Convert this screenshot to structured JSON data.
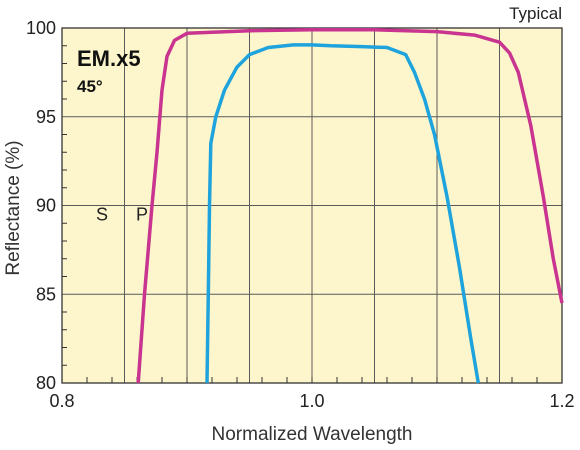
{
  "chart_data": {
    "type": "line",
    "title": "EM.x5",
    "subtitle": "45°",
    "note": "Typical",
    "xlabel": "Normalized Wavelength",
    "ylabel": "Reflectance (%)",
    "xlim": [
      0.8,
      1.2
    ],
    "ylim": [
      80,
      100
    ],
    "x_ticks": [
      "0.8",
      "1.0",
      "1.2"
    ],
    "y_ticks": [
      "80",
      "85",
      "90",
      "95",
      "100"
    ],
    "grid": true,
    "series": [
      {
        "name": "S",
        "color": "#c8348f",
        "points": [
          [
            0.861,
            80.0
          ],
          [
            0.866,
            85.0
          ],
          [
            0.872,
            90.0
          ],
          [
            0.876,
            93.0
          ],
          [
            0.88,
            96.5
          ],
          [
            0.884,
            98.4
          ],
          [
            0.89,
            99.3
          ],
          [
            0.9,
            99.7
          ],
          [
            0.95,
            99.85
          ],
          [
            1.0,
            99.9
          ],
          [
            1.05,
            99.9
          ],
          [
            1.1,
            99.8
          ],
          [
            1.13,
            99.6
          ],
          [
            1.15,
            99.2
          ],
          [
            1.158,
            98.6
          ],
          [
            1.165,
            97.5
          ],
          [
            1.175,
            94.5
          ],
          [
            1.185,
            90.5
          ],
          [
            1.193,
            87.0
          ],
          [
            1.2,
            84.5
          ]
        ]
      },
      {
        "name": "P",
        "color": "#1fa3dc",
        "points": [
          [
            0.916,
            80.0
          ],
          [
            0.917,
            85.0
          ],
          [
            0.918,
            90.0
          ],
          [
            0.919,
            93.5
          ],
          [
            0.923,
            95.0
          ],
          [
            0.93,
            96.5
          ],
          [
            0.94,
            97.8
          ],
          [
            0.95,
            98.5
          ],
          [
            0.965,
            98.9
          ],
          [
            0.985,
            99.05
          ],
          [
            1.0,
            99.05
          ],
          [
            1.015,
            99.0
          ],
          [
            1.04,
            98.95
          ],
          [
            1.06,
            98.9
          ],
          [
            1.075,
            98.5
          ],
          [
            1.082,
            97.5
          ],
          [
            1.09,
            96.0
          ],
          [
            1.098,
            94.0
          ],
          [
            1.108,
            90.5
          ],
          [
            1.118,
            86.5
          ],
          [
            1.127,
            82.5
          ],
          [
            1.133,
            80.0
          ]
        ]
      }
    ]
  },
  "colors": {
    "plot_background": "#fdf6cc",
    "grid": "#5a5a5a",
    "frame": "#333333"
  }
}
